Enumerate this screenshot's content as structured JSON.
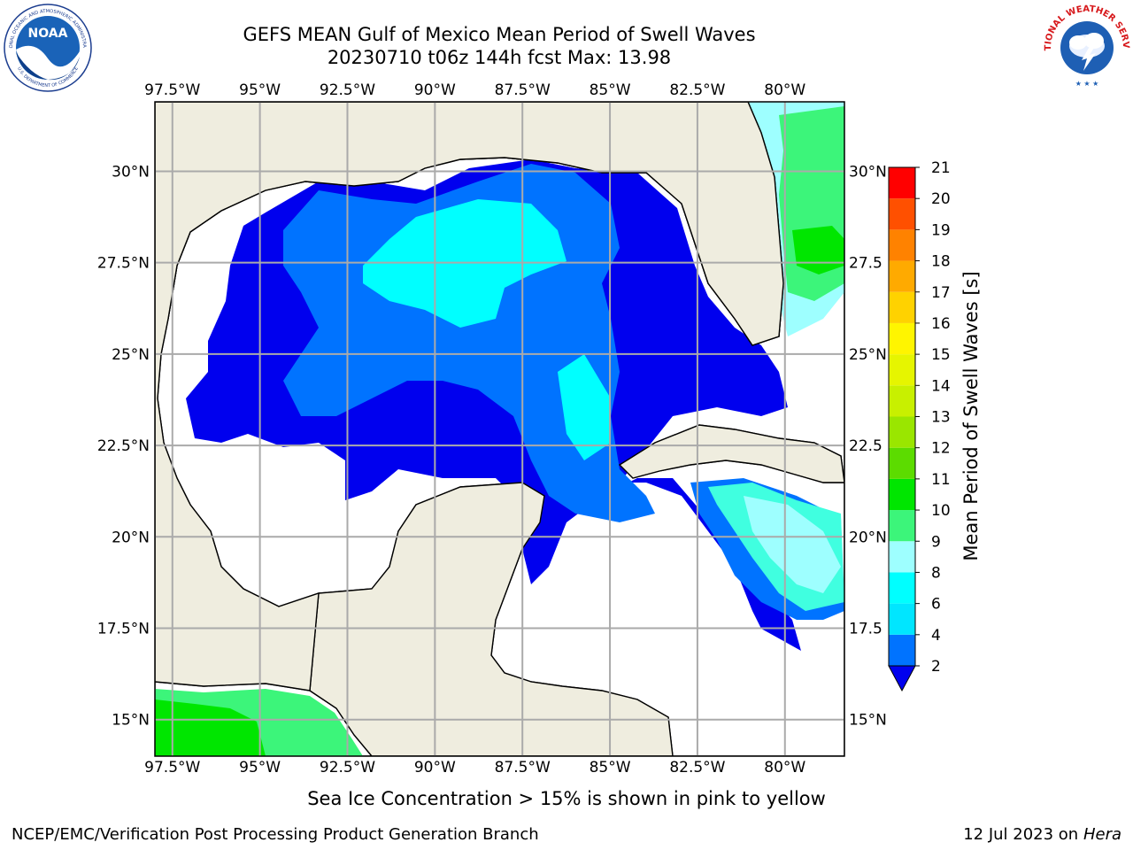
{
  "header": {
    "title": "GEFS MEAN Gulf of Mexico Mean Period of Swell Waves",
    "subtitle": "20230710 t06z 144h fcst   Max: 13.98"
  },
  "logos": {
    "left": {
      "name": "NOAA",
      "ring_text": "NATIONAL OCEANIC AND ATMOSPHERIC ADMINISTRATION",
      "bottom_text": "U.S. DEPARTMENT OF COMMERCE"
    },
    "right": {
      "ring_text": "NATIONAL WEATHER SERVICE"
    }
  },
  "map": {
    "lon_labels": [
      "97.5°W",
      "95°W",
      "92.5°W",
      "90°W",
      "87.5°W",
      "85°W",
      "82.5°W",
      "80°W"
    ],
    "lat_labels": [
      "30°N",
      "27.5°N",
      "25°N",
      "22.5°N",
      "20°N",
      "17.5°N",
      "15°N"
    ],
    "lat_labels_right": [
      "30°N",
      "27.5",
      "25°N",
      "22.5",
      "20°N",
      "17.5",
      "15°N"
    ],
    "lon_values": [
      -97.5,
      -95,
      -92.5,
      -90,
      -87.5,
      -85,
      -82.5,
      -80
    ],
    "lat_values": [
      30,
      27.5,
      25,
      22.5,
      20,
      17.5,
      15
    ],
    "extent": {
      "lon": [
        -98,
        -78.3
      ],
      "lat": [
        14,
        31.9
      ]
    }
  },
  "colorbar": {
    "label": "Mean Period of Swell Waves [s]",
    "ticks": [
      "2",
      "4",
      "6",
      "8",
      "9",
      "10",
      "11",
      "12",
      "13",
      "14",
      "15",
      "16",
      "17",
      "18",
      "19",
      "20",
      "21"
    ],
    "colors": [
      "#0000ee",
      "#0073ff",
      "#00c8ff",
      "#00ffff",
      "#40ffe0",
      "#9effff",
      "#3cf57a",
      "#00e600",
      "#5cdc00",
      "#9ae600",
      "#c8f000",
      "#e6f500",
      "#fff500",
      "#ffd200",
      "#ffaa00",
      "#ff8200",
      "#ff5000",
      "#ff2000",
      "#ff0000"
    ],
    "band_colors": [
      "#0000ee",
      "#0073ff",
      "#00c8ff",
      "#00ffff",
      "#40ffe0",
      "#9effff",
      "#3cf57a",
      "#00e600",
      "#5cdc00",
      "#9ae600",
      "#c8f000",
      "#e6f500",
      "#fff500",
      "#ffd200",
      "#ffaa00",
      "#ff8200",
      "#ff5000",
      "#ff2000",
      "#ff0000"
    ]
  },
  "footer": {
    "note": "Sea Ice Concentration > 15% is shown in pink to yellow",
    "left": "NCEP/EMC/Verification Post Processing Product Generation Branch",
    "right_date": "12 Jul 2023 on ",
    "right_machine": "Hera"
  }
}
